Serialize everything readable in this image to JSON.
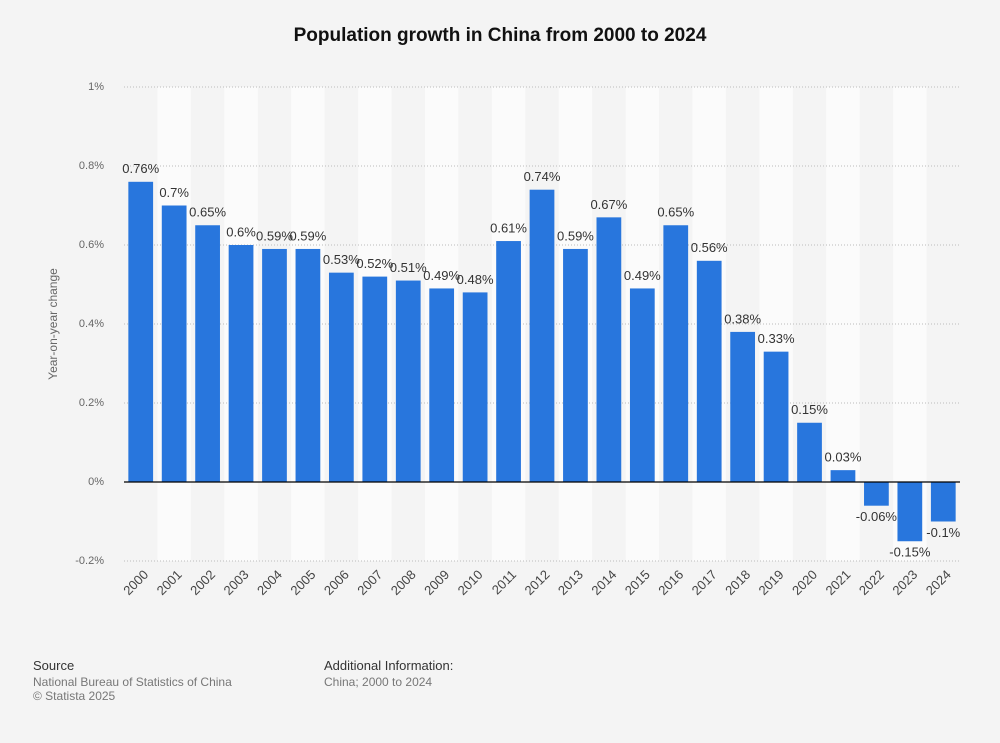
{
  "chart_data": {
    "type": "bar",
    "title": "Population growth in China from 2000 to 2024",
    "y_label": "Year-on-year change",
    "categories": [
      "2000",
      "2001",
      "2002",
      "2003",
      "2004",
      "2005",
      "2006",
      "2007",
      "2008",
      "2009",
      "2010",
      "2011",
      "2012",
      "2013",
      "2014",
      "2015",
      "2016",
      "2017",
      "2018",
      "2019",
      "2020",
      "2021",
      "2022",
      "2023",
      "2024"
    ],
    "values": [
      0.76,
      0.7,
      0.65,
      0.6,
      0.59,
      0.59,
      0.53,
      0.52,
      0.51,
      0.49,
      0.48,
      0.61,
      0.74,
      0.59,
      0.67,
      0.49,
      0.65,
      0.56,
      0.38,
      0.33,
      0.15,
      0.03,
      -0.06,
      -0.15,
      -0.1
    ],
    "value_labels": [
      "0.76%",
      "0.7%",
      "0.65%",
      "0.6%",
      "0.59%",
      "0.59%",
      "0.53%",
      "0.52%",
      "0.51%",
      "0.49%",
      "0.48%",
      "0.61%",
      "0.74%",
      "0.59%",
      "0.67%",
      "0.49%",
      "0.65%",
      "0.56%",
      "0.38%",
      "0.33%",
      "0.15%",
      "0.03%",
      "-0.06%",
      "-0.15%",
      "-0.1%"
    ],
    "color": "#2876dd",
    "ylim": [
      -0.2,
      1
    ],
    "yticks": [
      {
        "value": -0.2,
        "label": "-0.2%"
      },
      {
        "value": 0,
        "label": "0%"
      },
      {
        "value": 0.2,
        "label": "0.2%"
      },
      {
        "value": 0.4,
        "label": "0.4%"
      },
      {
        "value": 0.6,
        "label": "0.6%"
      },
      {
        "value": 0.8,
        "label": "0.8%"
      },
      {
        "value": 1,
        "label": "1%"
      }
    ],
    "grid": true
  },
  "footer": {
    "source_title": "Source",
    "source": "National Bureau of Statistics of China",
    "copyright": "© Statista 2025",
    "info_title": "Additional Information:",
    "info": "China; 2000 to 2024"
  }
}
